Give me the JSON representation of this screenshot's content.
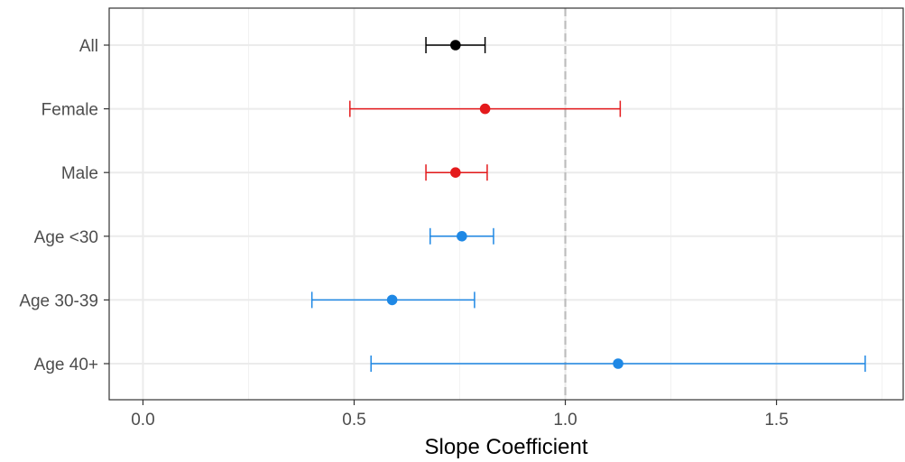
{
  "chart_data": {
    "type": "scatter",
    "subtype": "forest-plot",
    "title": "",
    "xlabel": "Slope Coefficient",
    "ylabel": "",
    "xlim": [
      -0.08,
      1.8
    ],
    "x_ticks": [
      0.0,
      0.5,
      1.0,
      1.5
    ],
    "x_tick_labels": [
      "0.0",
      "0.5",
      "1.0",
      "1.5"
    ],
    "reference_line": {
      "x": 1.0,
      "style": "dashed",
      "color": "#bdbdbd"
    },
    "grid": true,
    "legend": "none",
    "categories": [
      "All",
      "Female",
      "Male",
      "Age <30",
      "Age 30-39",
      "Age 40+"
    ],
    "points": [
      {
        "label": "All",
        "estimate": 0.74,
        "lower": 0.67,
        "upper": 0.81,
        "color": "#000000"
      },
      {
        "label": "Female",
        "estimate": 0.81,
        "lower": 0.49,
        "upper": 1.13,
        "color": "#e41a1c"
      },
      {
        "label": "Male",
        "estimate": 0.74,
        "lower": 0.67,
        "upper": 0.815,
        "color": "#e41a1c"
      },
      {
        "label": "Age <30",
        "estimate": 0.755,
        "lower": 0.68,
        "upper": 0.83,
        "color": "#1e88e5"
      },
      {
        "label": "Age 30-39",
        "estimate": 0.59,
        "lower": 0.4,
        "upper": 0.785,
        "color": "#1e88e5"
      },
      {
        "label": "Age 40+",
        "estimate": 1.125,
        "lower": 0.54,
        "upper": 1.71,
        "color": "#1e88e5"
      }
    ]
  }
}
